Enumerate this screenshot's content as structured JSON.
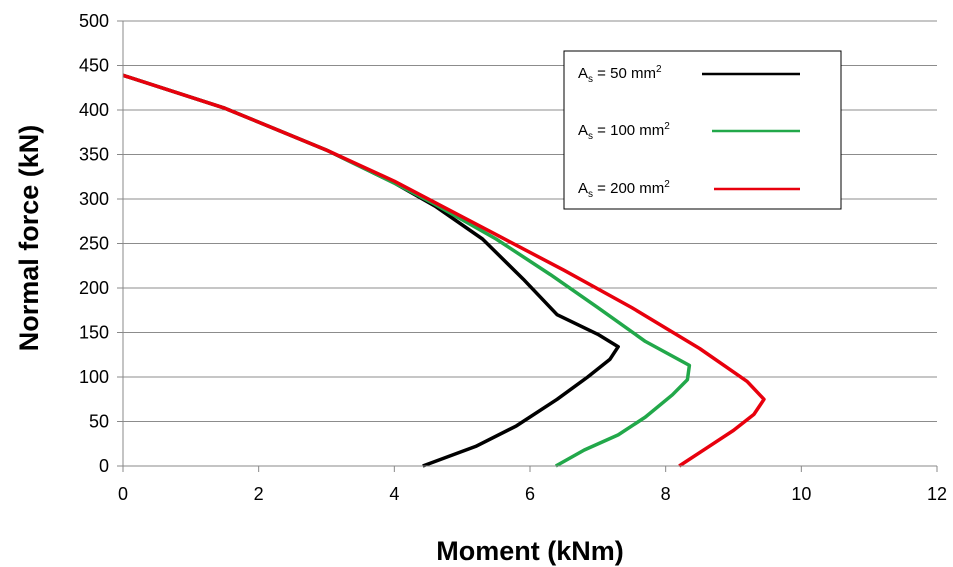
{
  "chart_data": {
    "type": "line",
    "title": "",
    "xlabel": "Moment (kNm)",
    "ylabel": "Normal force (kN)",
    "xlim": [
      0,
      12
    ],
    "ylim": [
      0,
      500
    ],
    "xticks": [
      0,
      2,
      4,
      6,
      8,
      10,
      12
    ],
    "yticks": [
      0,
      50,
      100,
      150,
      200,
      250,
      300,
      350,
      400,
      450,
      500
    ],
    "xtick_labels": [
      "0",
      "2",
      "4",
      "6",
      "8",
      "10",
      "12"
    ],
    "ytick_labels": [
      "0",
      "50",
      "100",
      "150",
      "200",
      "250",
      "300",
      "350",
      "400",
      "450",
      "500"
    ],
    "grid": "horizontal",
    "legend_position": "top-right",
    "series": [
      {
        "label_base": "A",
        "label_sub": "s",
        "label_mid": " = 50 mm",
        "label_sup": "2",
        "color": "#000000",
        "points": [
          [
            0,
            439
          ],
          [
            1.5,
            402
          ],
          [
            3,
            355
          ],
          [
            4,
            318
          ],
          [
            4.6,
            292
          ],
          [
            5.3,
            255
          ],
          [
            5.9,
            210
          ],
          [
            6.4,
            170
          ],
          [
            7.0,
            148
          ],
          [
            7.3,
            134
          ],
          [
            7.18,
            120
          ],
          [
            6.85,
            100
          ],
          [
            6.4,
            75
          ],
          [
            5.8,
            45
          ],
          [
            5.2,
            22
          ],
          [
            4.42,
            0
          ]
        ]
      },
      {
        "label_base": "A",
        "label_sub": "s",
        "label_mid": " = 100 mm",
        "label_sup": "2",
        "color": "#22a84a",
        "points": [
          [
            0,
            439
          ],
          [
            1.5,
            402
          ],
          [
            3,
            355
          ],
          [
            4,
            318
          ],
          [
            4.6,
            294
          ],
          [
            5.5,
            255
          ],
          [
            6.3,
            215
          ],
          [
            7.0,
            178
          ],
          [
            7.7,
            140
          ],
          [
            8.35,
            113
          ],
          [
            8.32,
            97
          ],
          [
            8.1,
            80
          ],
          [
            7.7,
            55
          ],
          [
            7.3,
            35
          ],
          [
            6.8,
            18
          ],
          [
            6.38,
            0
          ]
        ]
      },
      {
        "label_base": "A",
        "label_sub": "s",
        "label_mid": " = 200 mm",
        "label_sup": "2",
        "color": "#e8000d",
        "points": [
          [
            0,
            439
          ],
          [
            1.5,
            402
          ],
          [
            3,
            355
          ],
          [
            4,
            320
          ],
          [
            4.6,
            296
          ],
          [
            5.5,
            260
          ],
          [
            6.5,
            220
          ],
          [
            7.5,
            178
          ],
          [
            8.5,
            132
          ],
          [
            9.2,
            95
          ],
          [
            9.45,
            75
          ],
          [
            9.3,
            58
          ],
          [
            9.0,
            40
          ],
          [
            8.6,
            20
          ],
          [
            8.2,
            0
          ]
        ]
      }
    ]
  }
}
